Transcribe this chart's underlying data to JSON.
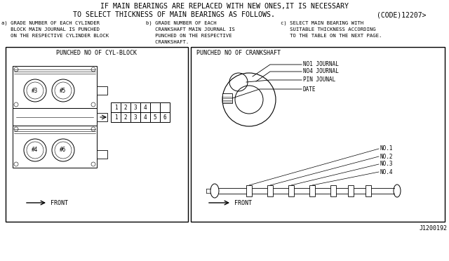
{
  "line_color": "#000000",
  "title_line1": "IF MAIN BEARINGS ARE REPLACED WITH NEW ONES,IT IS NECESSARY",
  "title_line2": "TO SELECT THICKNESS OF MAIN BEARINGS AS FOLLOWS.",
  "title_code": "(CODE)12207>",
  "sub_a_lines": [
    "a) GRADE NUMBER OF EACH CYLINDER",
    "   BLOCK MAIN JOURNAL IS PUNCHED",
    "   ON THE RESPECTIVE CYLINDER BLOCK"
  ],
  "sub_b_lines": [
    "b) GRADE NUMBER OF EACH",
    "   CRANKSHAFT MAIN JOURNAL IS",
    "   PUNCHED ON THE RESPECTIVE",
    "   CRANKSHAFT."
  ],
  "sub_c_lines": [
    "c) SELECT MAIN BEARING WITH",
    "   SUITABLE THICKNESS ACCORDING",
    "   TO THE TABLE ON THE NEXT PAGE."
  ],
  "box1_title": "PUNCHED NO OF CYL-BLOCK",
  "box2_title": "PUNCHED NO OF CRANKSHAFT",
  "part_code": "J1200192",
  "fig_width": 6.4,
  "fig_height": 3.72,
  "dpi": 100
}
